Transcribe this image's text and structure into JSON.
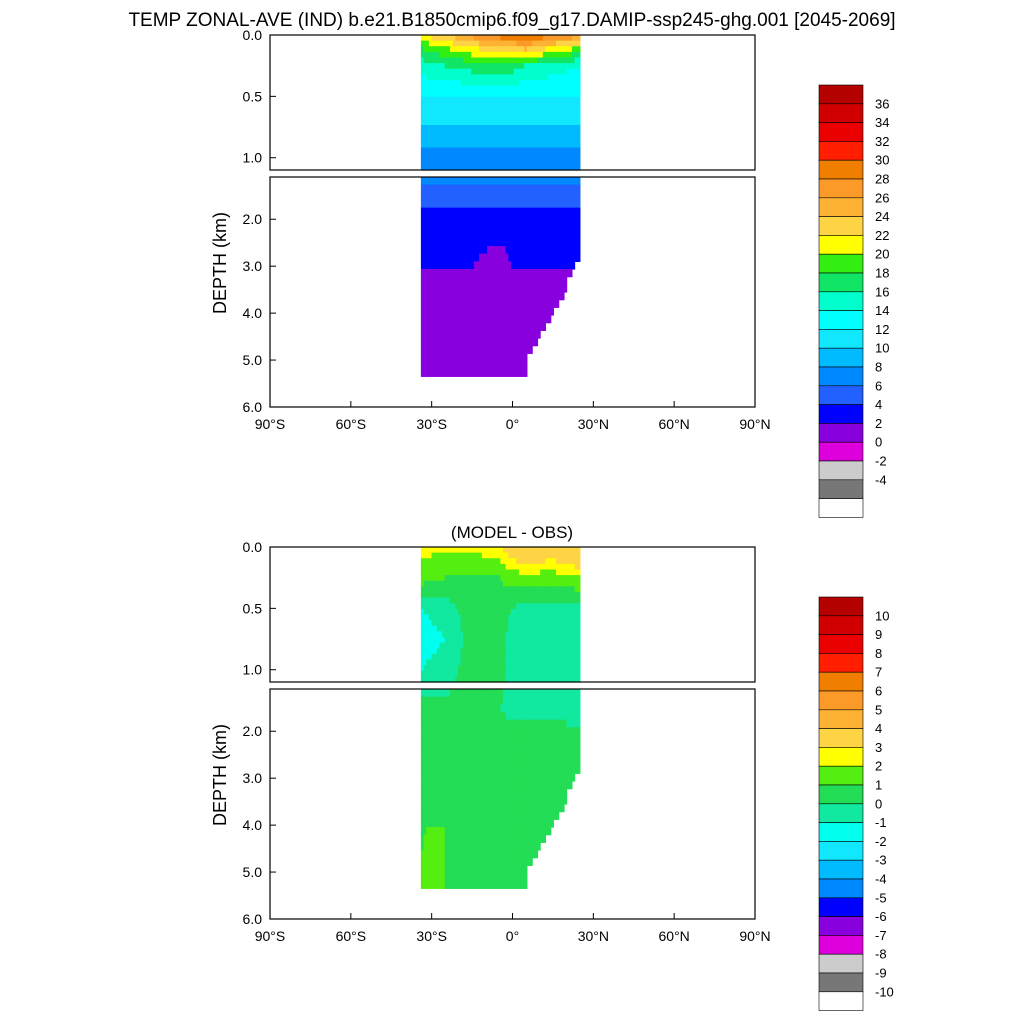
{
  "chart_data": [
    {
      "type": "heatmap",
      "title": "TEMP ZONAL-AVE (IND) b.e21.B1850cmip6.f09_g17.DAMIP-ssp245-ghg.001 [2045-2069]",
      "xlabel": "",
      "ylabel": "DEPTH (km)",
      "x_ticks": [
        "90°S",
        "60°S",
        "30°S",
        "0°",
        "30°N",
        "60°N",
        "90°N"
      ],
      "xlim": [
        -90,
        90
      ],
      "y_ticks_upper": [
        "0.0",
        "0.5",
        "1.0"
      ],
      "y_ticks_lower": [
        "2.0",
        "3.0",
        "4.0",
        "5.0",
        "6.0"
      ],
      "ylim_upper_km": [
        0,
        1.1
      ],
      "ylim_lower_km": [
        1.1,
        6.0
      ],
      "data_lat_range": [
        -34,
        25
      ],
      "y_reversed": true,
      "colorbar": {
        "labels": [
          "36",
          "34",
          "32",
          "30",
          "28",
          "26",
          "24",
          "22",
          "20",
          "18",
          "16",
          "14",
          "12",
          "10",
          "8",
          "6",
          "4",
          "2",
          "0",
          "-2",
          "-4"
        ],
        "colors": [
          "#b50000",
          "#d10000",
          "#eb0000",
          "#ff1e00",
          "#f07f00",
          "#fb9a29",
          "#feb234",
          "#fed344",
          "#ffff00",
          "#33ee11",
          "#11e566",
          "#00ffcc",
          "#00ffff",
          "#11e8ff",
          "#00bbff",
          "#0088ff",
          "#2260ff",
          "#0000ff",
          "#8800dd",
          "#dd00dd",
          "#cccccc",
          "#777777",
          "#ffffff"
        ]
      },
      "depth_levels_km": [
        0.0,
        0.1,
        0.25,
        0.5,
        0.75,
        1.0,
        1.5,
        2.0,
        3.0,
        4.0,
        5.0
      ],
      "latitudes": [
        -34,
        -25,
        -15,
        -5,
        0,
        5,
        15,
        25
      ],
      "values_degC": [
        [
          22,
          24,
          27,
          29,
          30,
          30,
          29,
          27
        ],
        [
          18,
          20,
          22,
          24,
          24,
          25,
          22,
          20
        ],
        [
          15,
          16,
          17,
          17,
          17,
          16,
          15,
          14
        ],
        [
          12,
          12,
          12,
          12,
          12,
          12,
          12,
          12
        ],
        [
          10,
          10,
          10,
          10,
          10,
          10,
          10,
          10
        ],
        [
          7,
          7,
          7,
          7,
          7,
          7,
          7,
          7
        ],
        [
          5,
          5,
          5,
          5,
          5,
          5,
          5,
          5
        ],
        [
          3,
          3,
          3,
          3,
          3,
          3,
          3,
          3
        ],
        [
          2,
          2,
          2,
          1,
          2,
          2,
          2,
          2
        ],
        [
          1,
          1,
          1,
          1,
          1,
          1,
          1,
          1
        ],
        [
          1,
          1,
          1,
          1,
          1,
          1,
          1,
          1
        ]
      ]
    },
    {
      "type": "heatmap",
      "title": "(MODEL - OBS)",
      "xlabel": "",
      "ylabel": "DEPTH (km)",
      "x_ticks": [
        "90°S",
        "60°S",
        "30°S",
        "0°",
        "30°N",
        "60°N",
        "90°N"
      ],
      "xlim": [
        -90,
        90
      ],
      "y_ticks_upper": [
        "0.0",
        "0.5",
        "1.0"
      ],
      "y_ticks_lower": [
        "2.0",
        "3.0",
        "4.0",
        "5.0",
        "6.0"
      ],
      "ylim_upper_km": [
        0,
        1.1
      ],
      "ylim_lower_km": [
        1.1,
        6.0
      ],
      "data_lat_range": [
        -34,
        25
      ],
      "y_reversed": true,
      "colorbar": {
        "labels": [
          "10",
          "9",
          "8",
          "7",
          "6",
          "5",
          "4",
          "3",
          "2",
          "1",
          "0",
          "-1",
          "-2",
          "-3",
          "-4",
          "-5",
          "-6",
          "-7",
          "-8",
          "-9",
          "-10"
        ],
        "colors": [
          "#b50000",
          "#d10000",
          "#eb0000",
          "#ff1e00",
          "#f07f00",
          "#fb9a29",
          "#feb234",
          "#fed344",
          "#ffff00",
          "#55ee11",
          "#22dd55",
          "#11e8a0",
          "#00ffee",
          "#11e8ff",
          "#00bbff",
          "#0088ff",
          "#0000ff",
          "#8800dd",
          "#dd00dd",
          "#cccccc",
          "#777777",
          "#ffffff"
        ]
      },
      "depth_levels_km": [
        0.0,
        0.1,
        0.25,
        0.5,
        0.75,
        1.0,
        1.5,
        2.0,
        3.0,
        4.0,
        5.0
      ],
      "latitudes": [
        -34,
        -25,
        -15,
        -5,
        0,
        5,
        15,
        25
      ],
      "values_degC": [
        [
          2.5,
          2.5,
          2.5,
          3,
          4,
          4,
          4,
          4
        ],
        [
          2,
          1.5,
          1.5,
          2,
          3,
          3.5,
          3,
          4
        ],
        [
          1.5,
          1,
          1,
          1,
          1.5,
          1.5,
          1.5,
          2
        ],
        [
          -1,
          -0.5,
          0.5,
          0.5,
          0,
          -0.5,
          -0.5,
          -0.5
        ],
        [
          -1.5,
          -1,
          0.5,
          0.5,
          -0.5,
          -1,
          -1,
          -1
        ],
        [
          -1,
          -0.5,
          0.5,
          0.5,
          -0.5,
          -1,
          -1,
          -1
        ],
        [
          0.5,
          0.5,
          0.5,
          0,
          -0.5,
          -0.5,
          -0.5,
          -0.5
        ],
        [
          0.5,
          0.5,
          0.5,
          0.5,
          0.5,
          0.5,
          0.5,
          0
        ],
        [
          0.5,
          0.5,
          0.5,
          0.5,
          0.5,
          0.5,
          0.5,
          0.5
        ],
        [
          1,
          1,
          0.5,
          0.5,
          0.5,
          0.5,
          0.5,
          0.5
        ],
        [
          1,
          1,
          0.5,
          0.5,
          0.5,
          0.5,
          0.5,
          0.5
        ]
      ]
    }
  ]
}
